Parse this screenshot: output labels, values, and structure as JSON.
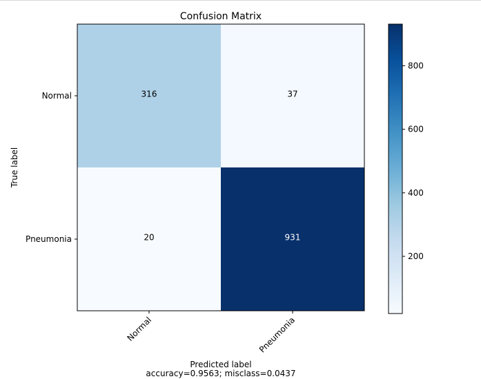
{
  "chart_data": {
    "type": "heatmap",
    "title": "Confusion Matrix",
    "ylabel": "True label",
    "xlabel": "Predicted label",
    "xlabel_note": "accuracy=0.9563; misclass=0.0437",
    "row_labels": [
      "Normal",
      "Pneumonia"
    ],
    "col_labels": [
      "Normal",
      "Pneumonia"
    ],
    "matrix": [
      [
        316,
        37
      ],
      [
        20,
        931
      ]
    ],
    "colormap": "Blues",
    "colorbar": {
      "ticks": [
        200,
        400,
        600,
        800
      ],
      "min": 20,
      "max": 931
    }
  }
}
